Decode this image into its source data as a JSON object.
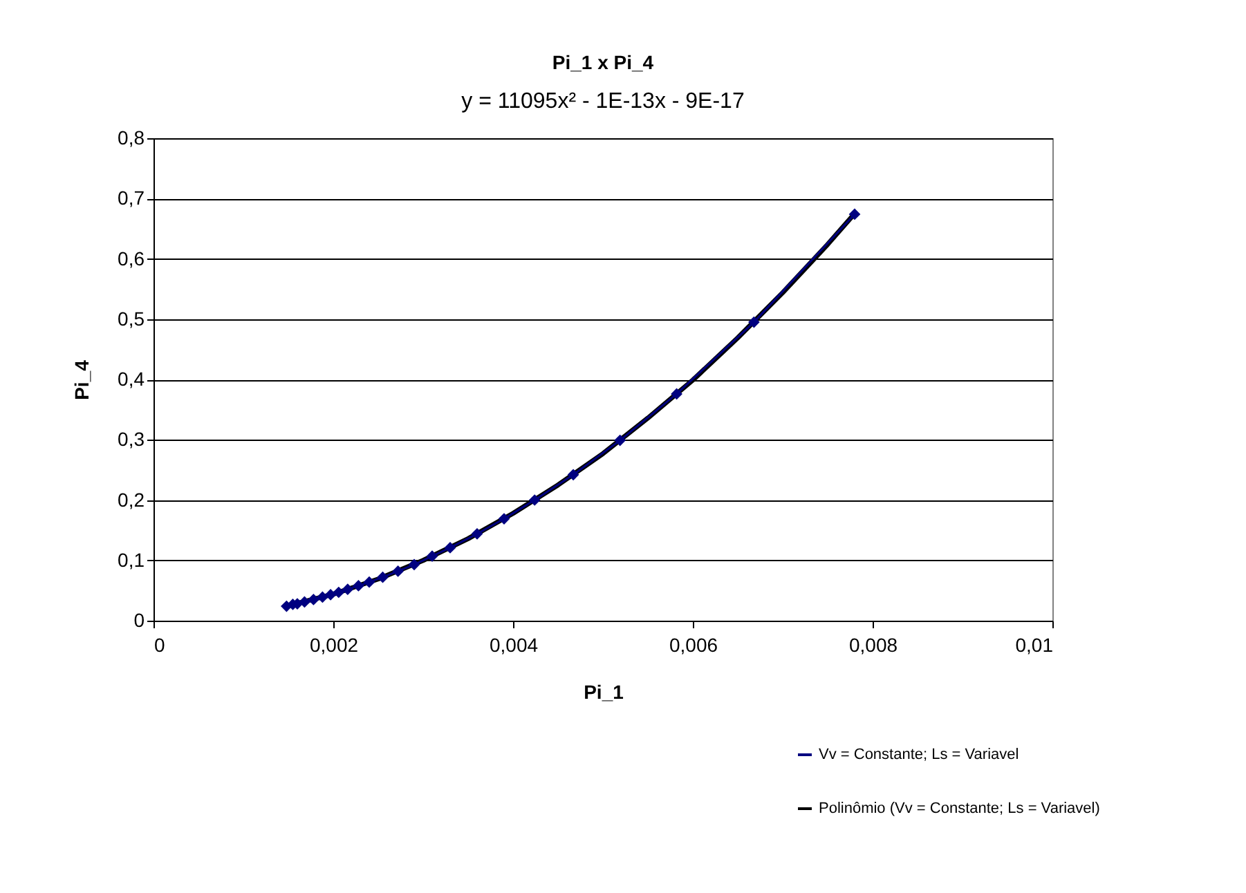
{
  "chart_data": {
    "type": "line",
    "title": "Pi_1 x Pi_4",
    "subtitle": "y = 11095x² - 1E-13x - 9E-17",
    "xlabel": "Pi_1",
    "ylabel": "Pi_4",
    "x": [
      0.00148,
      0.00155,
      0.0016,
      0.00168,
      0.00178,
      0.00188,
      0.00197,
      0.00206,
      0.00216,
      0.00228,
      0.0024,
      0.00255,
      0.00272,
      0.0029,
      0.0031,
      0.0033,
      0.0036,
      0.0039,
      0.00424,
      0.00467,
      0.00519,
      0.00582,
      0.00668,
      0.0078
    ],
    "series": [
      {
        "name": "Vv = Constante; Ls = Variavel",
        "color": "#000080",
        "marker": "diamond",
        "values": [
          0.024,
          0.027,
          0.028,
          0.031,
          0.035,
          0.039,
          0.043,
          0.047,
          0.052,
          0.058,
          0.064,
          0.072,
          0.082,
          0.093,
          0.107,
          0.121,
          0.144,
          0.169,
          0.2,
          0.242,
          0.299,
          0.376,
          0.495,
          0.674
        ]
      },
      {
        "name": "Polinômio (Vv = Constante; Ls = Variavel)",
        "color": "#000000",
        "type": "line",
        "marker": "none",
        "x": [
          0.00145,
          0.002,
          0.0025,
          0.003,
          0.0035,
          0.004,
          0.0045,
          0.005,
          0.0055,
          0.006,
          0.0065,
          0.007,
          0.0075,
          0.0078
        ],
        "values": [
          0.023,
          0.044,
          0.069,
          0.1,
          0.136,
          0.178,
          0.225,
          0.277,
          0.336,
          0.399,
          0.469,
          0.544,
          0.624,
          0.675
        ]
      }
    ],
    "xlim": [
      0,
      0.01
    ],
    "xticks": [
      0,
      {
        "value": 0.002,
        "label": "0,002"
      },
      {
        "value": 0.004,
        "label": "0,004"
      },
      {
        "value": 0.006,
        "label": "0,006"
      },
      {
        "value": 0.008,
        "label": "0,008"
      },
      {
        "value": 0.01,
        "label": "0,01"
      }
    ],
    "ylim": [
      0,
      0.8
    ],
    "yticks": [
      0,
      {
        "value": 0.1,
        "label": "0,1"
      },
      {
        "value": 0.2,
        "label": "0,2"
      },
      {
        "value": 0.3,
        "label": "0,3"
      },
      {
        "value": 0.4,
        "label": "0,4"
      },
      {
        "value": 0.5,
        "label": "0,5"
      },
      {
        "value": 0.6,
        "label": "0,6"
      },
      {
        "value": 0.7,
        "label": "0,7"
      },
      {
        "value": 0.8,
        "label": "0,8"
      }
    ],
    "grid": "y",
    "legend": "bottom right"
  }
}
